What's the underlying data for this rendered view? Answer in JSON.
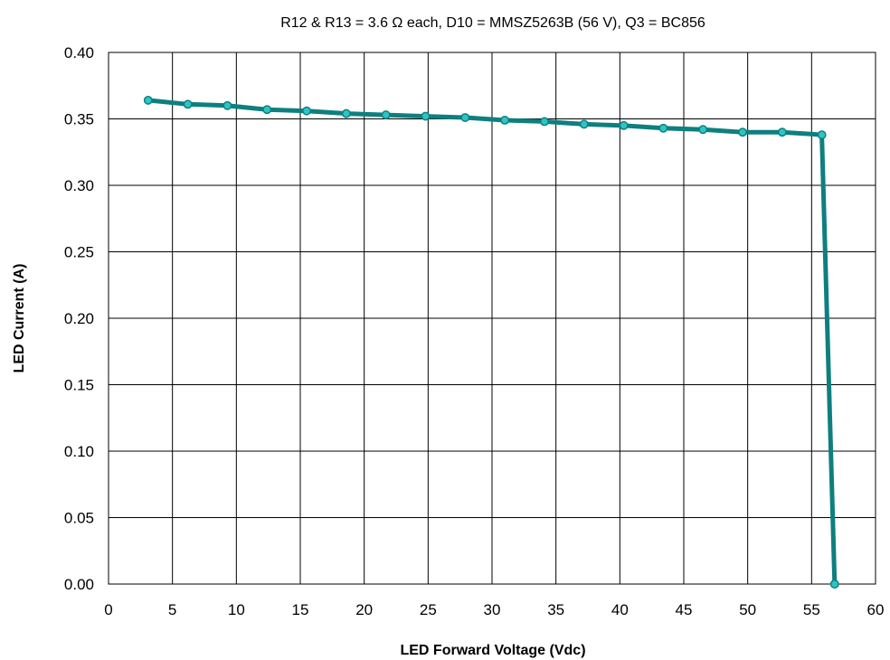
{
  "chart_data": {
    "type": "line",
    "title": "R12 & R13 = 3.6 Ω each, D10 = MMSZ5263B (56 V), Q3 = BC856",
    "xlabel": "LED Forward Voltage (Vdc)",
    "ylabel": "LED Current (A)",
    "xlim": [
      0,
      60
    ],
    "ylim": [
      0,
      0.4
    ],
    "x_ticks": [
      "0",
      "5",
      "10",
      "15",
      "20",
      "25",
      "30",
      "35",
      "40",
      "45",
      "50",
      "55",
      "60"
    ],
    "y_ticks": [
      "0.00",
      "0.05",
      "0.10",
      "0.15",
      "0.20",
      "0.25",
      "0.30",
      "0.35",
      "0.40"
    ],
    "grid": true,
    "series": [
      {
        "color": "#0e7f7f",
        "marker_color": "#2ec4c4",
        "x": [
          3.1,
          6.2,
          9.3,
          12.4,
          15.5,
          18.6,
          21.7,
          24.8,
          27.9,
          31.0,
          34.1,
          37.2,
          40.3,
          43.4,
          46.5,
          49.6,
          52.7,
          55.8,
          56.8
        ],
        "y": [
          0.364,
          0.361,
          0.36,
          0.357,
          0.356,
          0.354,
          0.353,
          0.352,
          0.351,
          0.349,
          0.348,
          0.346,
          0.345,
          0.343,
          0.342,
          0.34,
          0.34,
          0.338,
          0.0
        ]
      }
    ]
  }
}
